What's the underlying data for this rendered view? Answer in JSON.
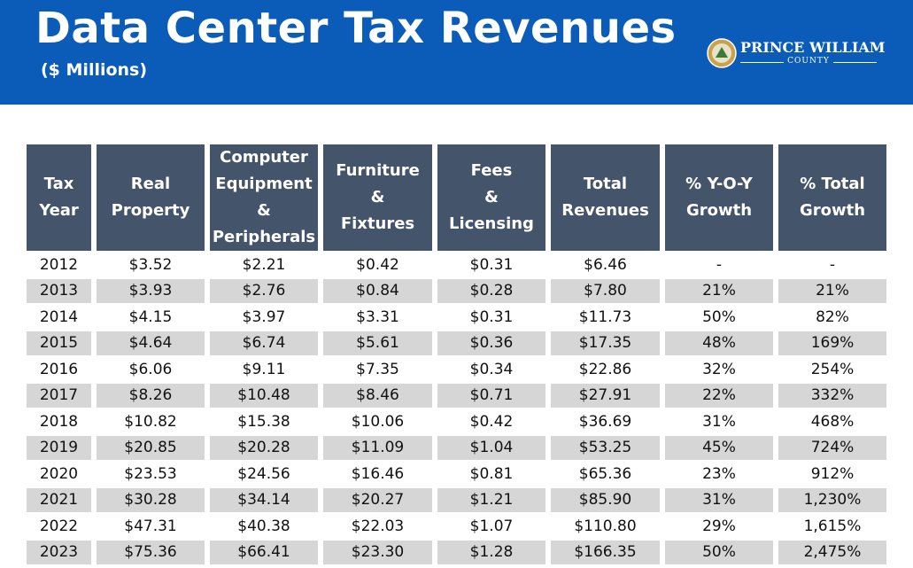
{
  "header": {
    "title": "Data Center Tax Revenues",
    "subtitle": "($ Millions)",
    "logo_name": "PRINCE WILLIAM",
    "logo_sub": "COUNTY"
  },
  "table": {
    "headers": [
      [
        "Tax",
        "Year"
      ],
      [
        "Real",
        "Property"
      ],
      [
        "Computer",
        "Equipment",
        "&",
        "Peripherals"
      ],
      [
        "Furniture",
        "&",
        "Fixtures"
      ],
      [
        "Fees",
        "&",
        "Licensing"
      ],
      [
        "Total",
        "Revenues"
      ],
      [
        "% Y-O-Y",
        "Growth"
      ],
      [
        "% Total",
        "Growth"
      ]
    ],
    "rows": [
      [
        "2012",
        "$3.52",
        "$2.21",
        "$0.42",
        "$0.31",
        "$6.46",
        "-",
        "-"
      ],
      [
        "2013",
        "$3.93",
        "$2.76",
        "$0.84",
        "$0.28",
        "$7.80",
        "21%",
        "21%"
      ],
      [
        "2014",
        "$4.15",
        "$3.97",
        "$3.31",
        "$0.31",
        "$11.73",
        "50%",
        "82%"
      ],
      [
        "2015",
        "$4.64",
        "$6.74",
        "$5.61",
        "$0.36",
        "$17.35",
        "48%",
        "169%"
      ],
      [
        "2016",
        "$6.06",
        "$9.11",
        "$7.35",
        "$0.34",
        "$22.86",
        "32%",
        "254%"
      ],
      [
        "2017",
        "$8.26",
        "$10.48",
        "$8.46",
        "$0.71",
        "$27.91",
        "22%",
        "332%"
      ],
      [
        "2018",
        "$10.82",
        "$15.38",
        "$10.06",
        "$0.42",
        "$36.69",
        "31%",
        "468%"
      ],
      [
        "2019",
        "$20.85",
        "$20.28",
        "$11.09",
        "$1.04",
        "$53.25",
        "45%",
        "724%"
      ],
      [
        "2020",
        "$23.53",
        "$24.56",
        "$16.46",
        "$0.81",
        "$65.36",
        "23%",
        "912%"
      ],
      [
        "2021",
        "$30.28",
        "$34.14",
        "$20.27",
        "$1.21",
        "$85.90",
        "31%",
        "1,230%"
      ],
      [
        "2022",
        "$47.31",
        "$40.38",
        "$22.03",
        "$1.07",
        "$110.80",
        "29%",
        "1,615%"
      ],
      [
        "2023",
        "$75.36",
        "$66.41",
        "$23.30",
        "$1.28",
        "$166.35",
        "50%",
        "2,475%"
      ]
    ]
  }
}
